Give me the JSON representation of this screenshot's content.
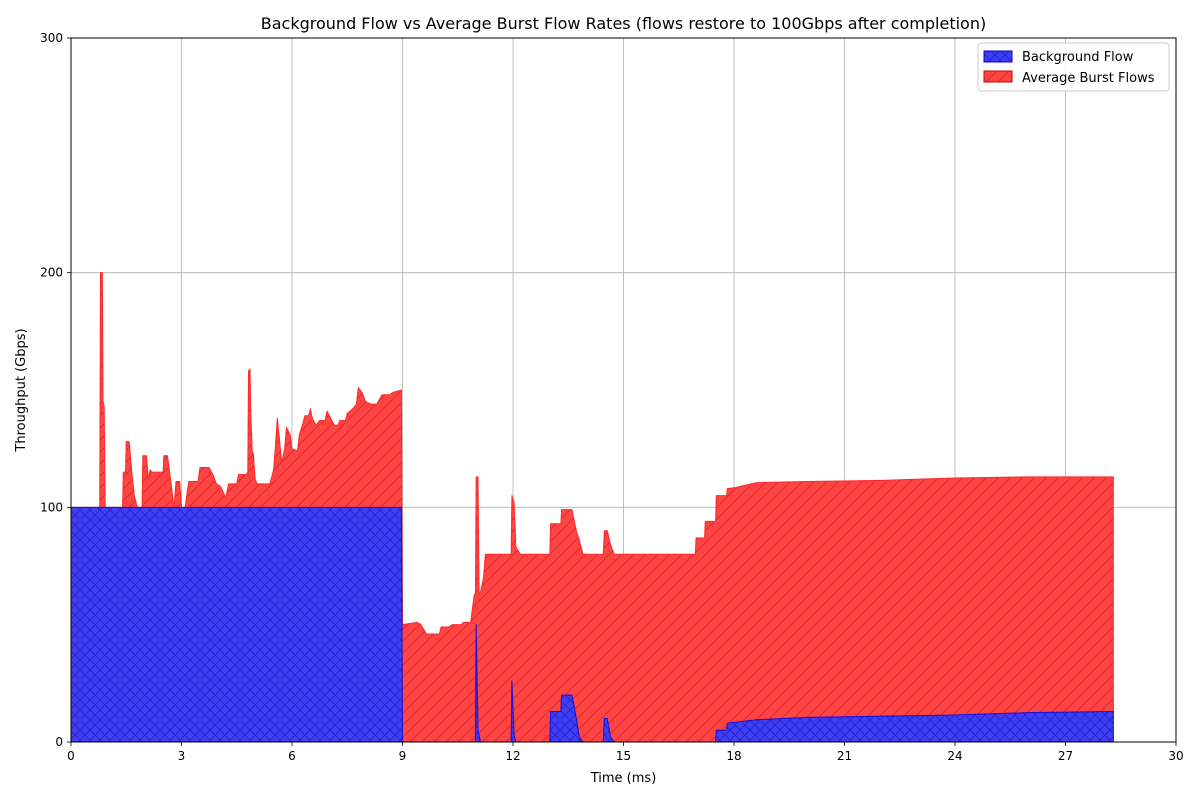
{
  "chart_data": {
    "type": "area",
    "title": "Background Flow vs Average Burst Flow Rates (flows restore to 100Gbps after completion)",
    "xlabel": "Time (ms)",
    "ylabel": "Throughput (Gbps)",
    "xlim": [
      0,
      30
    ],
    "ylim": [
      0,
      300
    ],
    "xticks": [
      "0",
      "3",
      "6",
      "9",
      "12",
      "15",
      "18",
      "21",
      "24",
      "27",
      "30"
    ],
    "yticks": [
      "0",
      "100",
      "200",
      "300"
    ],
    "grid": true,
    "stacked": true,
    "legend_position": "top-right",
    "series": [
      {
        "name": "Background Flow",
        "color": "#0000ff",
        "hatch": "crosshatch",
        "points": [
          [
            0,
            100
          ],
          [
            8.97,
            100
          ],
          [
            9.0,
            0
          ],
          [
            10.98,
            0
          ],
          [
            11.0,
            50
          ],
          [
            11.05,
            5
          ],
          [
            11.12,
            0
          ],
          [
            11.95,
            0
          ],
          [
            11.97,
            26
          ],
          [
            12.03,
            3
          ],
          [
            12.08,
            0
          ],
          [
            13.0,
            0
          ],
          [
            13.02,
            13
          ],
          [
            13.3,
            13
          ],
          [
            13.32,
            20
          ],
          [
            13.6,
            20
          ],
          [
            13.72,
            10
          ],
          [
            13.8,
            2
          ],
          [
            13.9,
            0
          ],
          [
            14.45,
            0
          ],
          [
            14.48,
            10
          ],
          [
            14.56,
            10
          ],
          [
            14.65,
            2
          ],
          [
            14.75,
            0
          ],
          [
            17.5,
            0
          ],
          [
            17.52,
            5
          ],
          [
            17.8,
            5
          ],
          [
            17.82,
            8
          ],
          [
            18.6,
            9.5
          ],
          [
            20,
            10.5
          ],
          [
            22,
            11
          ],
          [
            24,
            11.5
          ],
          [
            26,
            12.5
          ],
          [
            28.3,
            13
          ]
        ]
      },
      {
        "name": "Average Burst Flows",
        "color": "#ff0000",
        "hatch": "diagonal",
        "points": [
          [
            0,
            0
          ],
          [
            0.78,
            0
          ],
          [
            0.8,
            100
          ],
          [
            0.83,
            100
          ],
          [
            0.85,
            100
          ],
          [
            0.87,
            45
          ],
          [
            0.9,
            43
          ],
          [
            0.93,
            0
          ],
          [
            1.4,
            0
          ],
          [
            1.42,
            15
          ],
          [
            1.48,
            15
          ],
          [
            1.5,
            28
          ],
          [
            1.58,
            28
          ],
          [
            1.65,
            15
          ],
          [
            1.72,
            5
          ],
          [
            1.8,
            0
          ],
          [
            1.93,
            0
          ],
          [
            1.95,
            22
          ],
          [
            2.05,
            22
          ],
          [
            2.1,
            12
          ],
          [
            2.15,
            16
          ],
          [
            2.2,
            15
          ],
          [
            2.25,
            15
          ],
          [
            2.5,
            15
          ],
          [
            2.52,
            22
          ],
          [
            2.62,
            22
          ],
          [
            2.67,
            16
          ],
          [
            2.8,
            0
          ],
          [
            2.85,
            11
          ],
          [
            2.95,
            11
          ],
          [
            3.0,
            0
          ],
          [
            3.1,
            0
          ],
          [
            3.15,
            6
          ],
          [
            3.2,
            11
          ],
          [
            3.45,
            11
          ],
          [
            3.5,
            17
          ],
          [
            3.75,
            17
          ],
          [
            3.85,
            14
          ],
          [
            3.95,
            10
          ],
          [
            4.05,
            9
          ],
          [
            4.12,
            7
          ],
          [
            4.2,
            4
          ],
          [
            4.28,
            10
          ],
          [
            4.5,
            10
          ],
          [
            4.55,
            14
          ],
          [
            4.75,
            14
          ],
          [
            4.8,
            15
          ],
          [
            4.82,
            58
          ],
          [
            4.86,
            59
          ],
          [
            4.88,
            40
          ],
          [
            4.92,
            24
          ],
          [
            4.95,
            23
          ],
          [
            5.0,
            12
          ],
          [
            5.05,
            10
          ],
          [
            5.4,
            10
          ],
          [
            5.45,
            13
          ],
          [
            5.5,
            16
          ],
          [
            5.55,
            26
          ],
          [
            5.6,
            38
          ],
          [
            5.66,
            29
          ],
          [
            5.72,
            19
          ],
          [
            5.8,
            25
          ],
          [
            5.85,
            34
          ],
          [
            5.95,
            31
          ],
          [
            6.0,
            25
          ],
          [
            6.15,
            24
          ],
          [
            6.2,
            31
          ],
          [
            6.3,
            36
          ],
          [
            6.35,
            39
          ],
          [
            6.45,
            39
          ],
          [
            6.5,
            42
          ],
          [
            6.55,
            38
          ],
          [
            6.65,
            35
          ],
          [
            6.75,
            37
          ],
          [
            6.9,
            37
          ],
          [
            6.95,
            41
          ],
          [
            7.05,
            38
          ],
          [
            7.15,
            35
          ],
          [
            7.25,
            35
          ],
          [
            7.3,
            37
          ],
          [
            7.45,
            37
          ],
          [
            7.5,
            40
          ],
          [
            7.65,
            42
          ],
          [
            7.75,
            44
          ],
          [
            7.8,
            51
          ],
          [
            7.9,
            49
          ],
          [
            8.0,
            45
          ],
          [
            8.15,
            44
          ],
          [
            8.3,
            44
          ],
          [
            8.45,
            48
          ],
          [
            8.65,
            48
          ],
          [
            8.75,
            49
          ],
          [
            8.97,
            50
          ],
          [
            9.0,
            50
          ],
          [
            9.4,
            51
          ],
          [
            9.5,
            50
          ],
          [
            9.65,
            46
          ],
          [
            10.0,
            46
          ],
          [
            10.05,
            49
          ],
          [
            10.25,
            49
          ],
          [
            10.35,
            50
          ],
          [
            10.6,
            50
          ],
          [
            10.65,
            51
          ],
          [
            10.85,
            51
          ],
          [
            10.9,
            57
          ],
          [
            10.95,
            63
          ],
          [
            10.98,
            63
          ],
          [
            11.0,
            63
          ],
          [
            11.05,
            108
          ],
          [
            11.08,
            60
          ],
          [
            11.12,
            64
          ],
          [
            11.2,
            70
          ],
          [
            11.25,
            80
          ],
          [
            11.95,
            80
          ],
          [
            11.97,
            79
          ],
          [
            12.03,
            99
          ],
          [
            12.08,
            83
          ],
          [
            12.2,
            80
          ],
          [
            13.0,
            80
          ],
          [
            13.02,
            80
          ],
          [
            13.3,
            80
          ],
          [
            13.32,
            79
          ],
          [
            13.6,
            79
          ],
          [
            13.72,
            80
          ],
          [
            13.8,
            84
          ],
          [
            13.9,
            80
          ],
          [
            14.45,
            80
          ],
          [
            14.48,
            80
          ],
          [
            14.56,
            80
          ],
          [
            14.65,
            82
          ],
          [
            14.75,
            80
          ],
          [
            16.95,
            80
          ],
          [
            16.97,
            87
          ],
          [
            17.2,
            87
          ],
          [
            17.22,
            94
          ],
          [
            17.48,
            94
          ],
          [
            17.5,
            94
          ],
          [
            17.52,
            100
          ],
          [
            17.8,
            100
          ],
          [
            17.82,
            100
          ],
          [
            18.0,
            100
          ],
          [
            18.05,
            100
          ],
          [
            18.6,
            101
          ],
          [
            20,
            100.5
          ],
          [
            22,
            100.5
          ],
          [
            24,
            101
          ],
          [
            26,
            100.5
          ],
          [
            28.3,
            100
          ]
        ]
      }
    ]
  }
}
